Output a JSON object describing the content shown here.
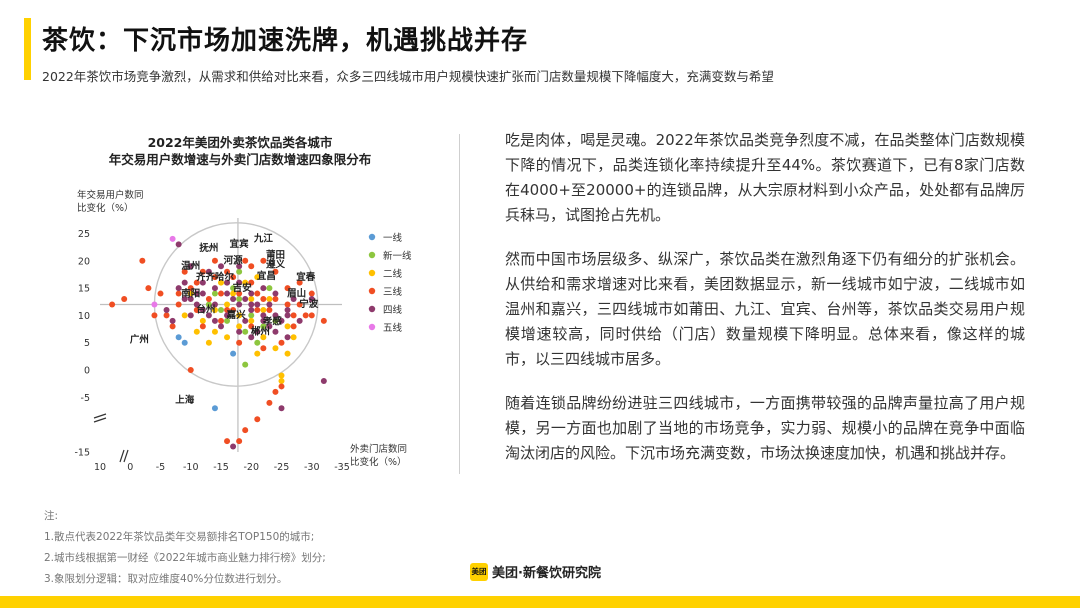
{
  "header": {
    "title": "茶饮：下沉市场加速洗牌，机遇挑战并存",
    "subtitle": "2022年茶饮市场竞争激烈，从需求和供给对比来看，众多三四线城市用户规模快速扩张而门店数量规模下降幅度大，充满变数与希望"
  },
  "chart_title": [
    "2022年美团外卖茶饮品类各城市",
    "年交易用户数增速与外卖门店数增速四象限分布"
  ],
  "body": {
    "paragraphs": [
      "吃是肉体，喝是灵魂。2022年茶饮品类竞争烈度不减，在品类整体门店数规模下降的情况下，品类连锁化率持续提升至44%。茶饮赛道下，已有8家门店数在4000+至20000+的连锁品牌，从大宗原材料到小众产品，处处都有品牌厉兵秣马，试图抢占先机。",
      "然而中国市场层级多、纵深广，茶饮品类在激烈角逐下仍有细分的扩张机会。从供给和需求增速对比来看，美团数据显示，新一线城市如宁波，二线城市如温州和嘉兴，三四线城市如莆田、九江、宜宾、台州等，茶饮品类交易用户规模增速较高，同时供给（门店）数量规模下降明显。总体来看，像这样的城市，以三四线城市居多。",
      "随着连锁品牌纷纷进驻三四线城市，一方面携带较强的品牌声量拉高了用户规模，另一方面也加剧了当地的市场竞争，实力弱、规模小的品牌在竞争中面临淘汰闭店的风险。下沉市场充满变数，市场汰换速度加快，机遇和挑战并存。"
    ]
  },
  "notes": {
    "heading": "注:",
    "items": [
      "1.散点代表2022年茶饮品类年交易额排名TOP150的城市;",
      "2.城市线根据第一财经《2022年城市商业魅力排行榜》划分;",
      "3.象限划分逻辑：取对应维度40%分位数进行划分。"
    ]
  },
  "logo": {
    "mark": "美团",
    "text": "美团·新餐饮研究院"
  },
  "colors": {
    "accent": "#FFD100"
  },
  "chart_data": {
    "type": "scatter",
    "xlabel": "外卖门店数同比变化（%）",
    "ylabel": "年交易用户数同比变化（%）",
    "x_ticks": [
      "10",
      "0",
      "-5",
      "-10",
      "-15",
      "-20",
      "-25",
      "-30",
      "-35"
    ],
    "y_ticks": [
      "25",
      "20",
      "15",
      "10",
      "5",
      "0",
      "-5",
      "-15"
    ],
    "x_tick_values": [
      5,
      0,
      -5,
      -10,
      -15,
      -20,
      -25,
      -30,
      -35
    ],
    "y_tick_values": [
      25,
      20,
      15,
      10,
      5,
      0,
      -5,
      -15
    ],
    "xlim": [
      5,
      -35
    ],
    "ylim": [
      -15,
      26
    ],
    "quadrant_divider": {
      "x": -17.8,
      "y": 12
    },
    "axis_break_marks": true,
    "circle": {
      "center_x": -17.5,
      "center_y": 12,
      "radius_x_units": 13.5
    },
    "legend_position": "right",
    "series": [
      {
        "name": "一线",
        "color": "#5B9BD5",
        "points": [
          [
            -14,
            -7
          ],
          [
            -8,
            6
          ],
          [
            -9,
            5
          ],
          [
            -17,
            3
          ]
        ]
      },
      {
        "name": "新一线",
        "color": "#8DC63F",
        "points": [
          [
            -14,
            14
          ],
          [
            -16,
            16
          ],
          [
            -18,
            13
          ],
          [
            -20,
            10
          ],
          [
            -22,
            8
          ],
          [
            -13,
            12
          ],
          [
            -17,
            15
          ],
          [
            -19,
            7
          ],
          [
            -21,
            5
          ],
          [
            -16,
            9
          ],
          [
            -24,
            9
          ],
          [
            -18,
            18
          ],
          [
            -19,
            1
          ],
          [
            -23,
            15
          ],
          [
            -15,
            11
          ]
        ]
      },
      {
        "name": "二线",
        "color": "#FFC000",
        "points": [
          [
            -12,
            9
          ],
          [
            -14,
            11
          ],
          [
            -16,
            12
          ],
          [
            -18,
            10
          ],
          [
            -20,
            13
          ],
          [
            -22,
            11
          ],
          [
            -24,
            4
          ],
          [
            -26,
            3
          ],
          [
            -25,
            -2
          ],
          [
            -27,
            6
          ],
          [
            -25,
            -1
          ],
          [
            -21,
            17
          ],
          [
            -17,
            14
          ],
          [
            -15,
            16
          ],
          [
            -11,
            7
          ],
          [
            -13,
            5
          ],
          [
            -19,
            16
          ],
          [
            -23,
            13
          ],
          [
            -10,
            14
          ],
          [
            -18,
            8
          ],
          [
            -21,
            3
          ],
          [
            -16,
            6
          ],
          [
            -9,
            10
          ],
          [
            -22,
            6
          ],
          [
            -26,
            8
          ],
          [
            -14,
            7
          ],
          [
            -20,
            9
          ]
        ]
      },
      {
        "name": "三线",
        "color": "#F04E23",
        "points": [
          [
            -2,
            20
          ],
          [
            1,
            13
          ],
          [
            3,
            12
          ],
          [
            -4,
            10
          ],
          [
            -8,
            12
          ],
          [
            -10,
            15
          ],
          [
            -12,
            18
          ],
          [
            -14,
            20
          ],
          [
            -16,
            18
          ],
          [
            -18,
            14
          ],
          [
            -20,
            16
          ],
          [
            -22,
            20
          ],
          [
            -24,
            18
          ],
          [
            -26,
            15
          ],
          [
            -28,
            12
          ],
          [
            -30,
            10
          ],
          [
            -32,
            9
          ],
          [
            -27,
            8
          ],
          [
            -25,
            -3
          ],
          [
            -23,
            -6
          ],
          [
            -21,
            -9
          ],
          [
            -19,
            -11
          ],
          [
            -18,
            -13
          ],
          [
            -16,
            -13
          ],
          [
            -25,
            5
          ],
          [
            -10,
            0
          ],
          [
            -6,
            10
          ],
          [
            -8,
            14
          ],
          [
            -11,
            11
          ],
          [
            -13,
            13
          ],
          [
            -15,
            14
          ],
          [
            -17,
            17
          ],
          [
            -19,
            20
          ],
          [
            -21,
            14
          ],
          [
            -23,
            11
          ],
          [
            -26,
            12
          ],
          [
            -28,
            16
          ],
          [
            -20,
            8
          ],
          [
            -22,
            4
          ],
          [
            -5,
            14
          ],
          [
            -24,
            -4
          ],
          [
            -12,
            8
          ],
          [
            -17,
            11
          ],
          [
            -9,
            18
          ],
          [
            -27,
            10
          ],
          [
            -30,
            14
          ],
          [
            -15,
            9
          ],
          [
            -7,
            8
          ],
          [
            -18,
            5
          ],
          [
            -22,
            13
          ],
          [
            -20,
            19
          ],
          [
            -24,
            13
          ],
          [
            -29,
            10
          ],
          [
            -3,
            15
          ],
          [
            -16,
            11
          ],
          [
            -14,
            17
          ],
          [
            -11,
            16
          ],
          [
            -21,
            11
          ]
        ]
      },
      {
        "name": "四线",
        "color": "#8E3A6C",
        "points": [
          [
            -8,
            23
          ],
          [
            -10,
            19
          ],
          [
            -12,
            16
          ],
          [
            -14,
            15
          ],
          [
            -16,
            14
          ],
          [
            -18,
            12
          ],
          [
            -20,
            11
          ],
          [
            -22,
            9
          ],
          [
            -24,
            7
          ],
          [
            -26,
            6
          ],
          [
            -28,
            9
          ],
          [
            -30,
            13
          ],
          [
            -32,
            -2
          ],
          [
            -25,
            -7
          ],
          [
            -17,
            -14
          ],
          [
            -18,
            19
          ],
          [
            -20,
            14
          ],
          [
            -9,
            13
          ],
          [
            -11,
            12
          ],
          [
            -13,
            10
          ],
          [
            -15,
            8
          ],
          [
            -19,
            9
          ],
          [
            -21,
            7
          ],
          [
            -23,
            8
          ],
          [
            -6,
            11
          ],
          [
            -7,
            9
          ],
          [
            -10,
            10
          ],
          [
            -12,
            14
          ],
          [
            -14,
            12
          ],
          [
            -16,
            10
          ],
          [
            -18,
            16
          ],
          [
            -20,
            12
          ],
          [
            -22,
            15
          ],
          [
            -24,
            10
          ],
          [
            -26,
            11
          ],
          [
            -9,
            16
          ],
          [
            -11,
            14
          ],
          [
            -13,
            18
          ],
          [
            -15,
            19
          ],
          [
            -17,
            13
          ],
          [
            -19,
            13
          ],
          [
            -21,
            12
          ],
          [
            -23,
            12
          ],
          [
            -25,
            9
          ],
          [
            -27,
            13
          ],
          [
            -8,
            15
          ],
          [
            -10,
            13
          ],
          [
            -12,
            11
          ],
          [
            -14,
            9
          ],
          [
            -16,
            16
          ],
          [
            -18,
            7
          ],
          [
            -20,
            6
          ],
          [
            -22,
            10
          ],
          [
            -24,
            14
          ],
          [
            -26,
            10
          ]
        ]
      },
      {
        "name": "五线",
        "color": "#E879E8",
        "points": [
          [
            -7,
            24
          ],
          [
            -4,
            12
          ]
        ]
      }
    ],
    "city_labels": [
      {
        "text": "九江",
        "x": -22,
        "y": 23.5
      },
      {
        "text": "宜宾",
        "x": -18,
        "y": 22.5
      },
      {
        "text": "抚州",
        "x": -13,
        "y": 21.8
      },
      {
        "text": "莆田",
        "x": -24,
        "y": 20.5
      },
      {
        "text": "河源",
        "x": -17,
        "y": 19.5
      },
      {
        "text": "遵义",
        "x": -24,
        "y": 18.8
      },
      {
        "text": "温州",
        "x": -10,
        "y": 18.5
      },
      {
        "text": "宜昌",
        "x": -22.5,
        "y": 16.7
      },
      {
        "text": "宜春",
        "x": -29,
        "y": 16.5
      },
      {
        "text": "齐齐哈尔",
        "x": -14,
        "y": 16.5
      },
      {
        "text": "吉安",
        "x": -18.5,
        "y": 14.5
      },
      {
        "text": "眉山",
        "x": -27.5,
        "y": 13.5
      },
      {
        "text": "南阳",
        "x": -10,
        "y": 13.5
      },
      {
        "text": "宁波",
        "x": -29.5,
        "y": 11.5
      },
      {
        "text": "台州",
        "x": -12.5,
        "y": 10.5
      },
      {
        "text": "嘉兴",
        "x": -17.5,
        "y": 9.5
      },
      {
        "text": "孝感",
        "x": -23.5,
        "y": 8.3
      },
      {
        "text": "郴州",
        "x": -21.5,
        "y": 6.5
      },
      {
        "text": "广州",
        "x": -1.5,
        "y": 5
      },
      {
        "text": "上海",
        "x": -9,
        "y": -6
      }
    ]
  }
}
